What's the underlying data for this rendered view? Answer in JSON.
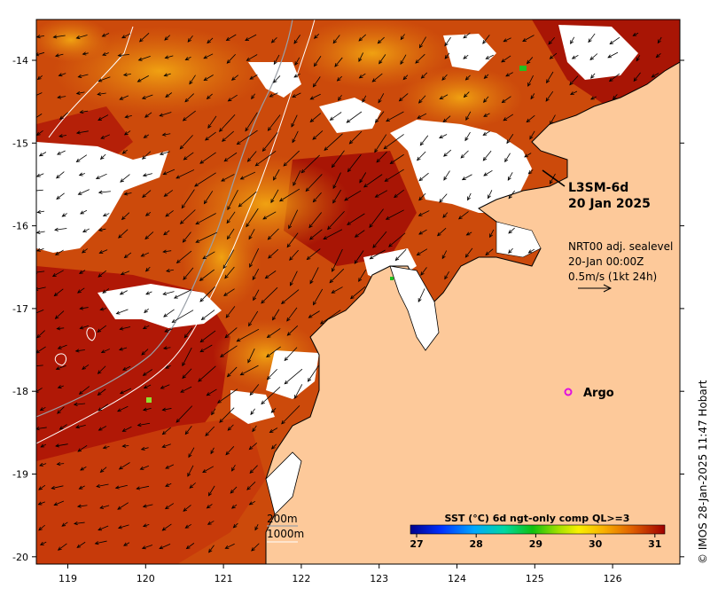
{
  "map": {
    "product_title": "L3SM-6d",
    "product_date": "20 Jan 2025",
    "current_source": "NRT00 adj. sealevel",
    "current_time": "20-Jan 00:00Z",
    "current_scale": "0.5m/s (1kt 24h)",
    "argo_label": "Argo",
    "contour_200": "200m",
    "contour_1000": "1000m",
    "credit": "© IMOS 28-Jan-2025 11:47 Hobart",
    "lon_ticks": [
      "119",
      "120",
      "121",
      "122",
      "123",
      "124",
      "125",
      "126"
    ],
    "lat_ticks": [
      "-14",
      "-15",
      "-16",
      "-17",
      "-18",
      "-19",
      "-20"
    ],
    "colorbar": {
      "title": "SST (°C) 6d ngt-only comp QL>=3",
      "ticks": [
        "27",
        "28",
        "29",
        "30",
        "31"
      ]
    },
    "colors": {
      "land": "#fdc99a",
      "cloud": "#ffffff",
      "sst_warm": "#b01a06",
      "sst_mid": "#d9600e",
      "sst_cool": "#f0a512",
      "argo": "#e010e0"
    }
  }
}
